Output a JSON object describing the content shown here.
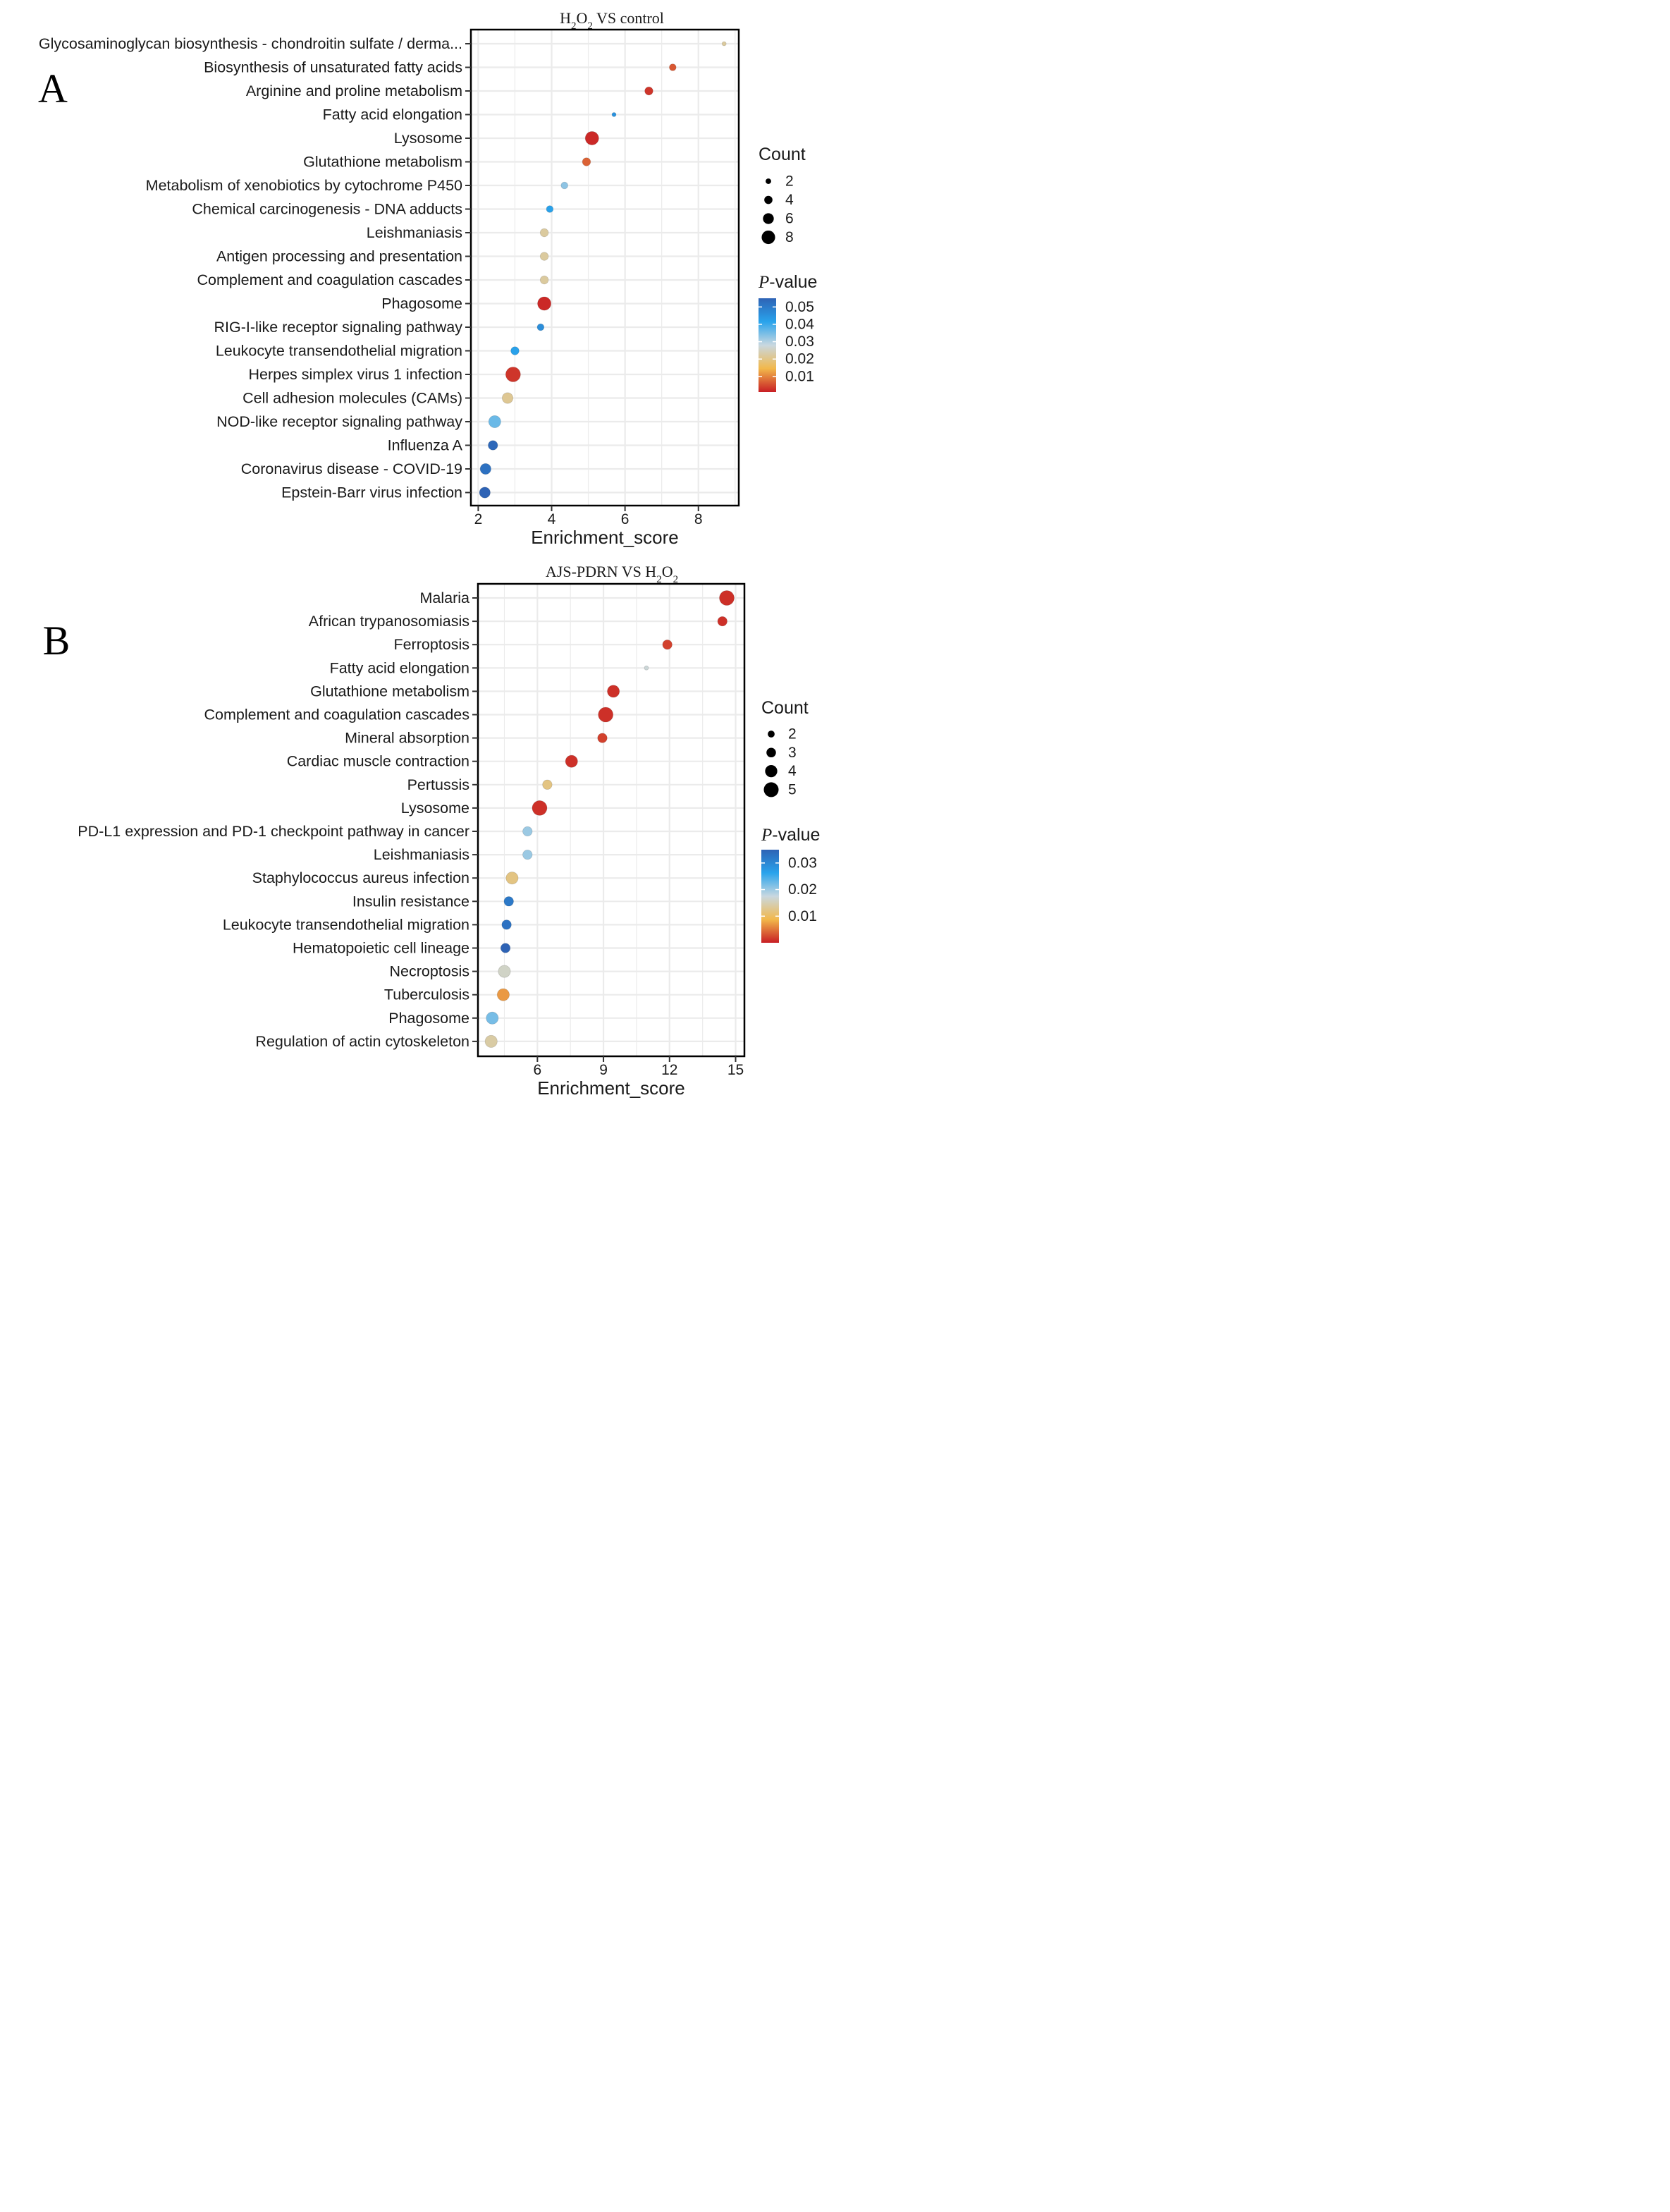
{
  "chart_data": [
    {
      "type": "scatter",
      "panel_label": "A",
      "title": "H2O2 VS control",
      "title_parts": {
        "pre": "H",
        "sub1": "2",
        "mid": "O",
        "sub2": "2",
        "post": " VS control"
      },
      "xlabel": "Enrichment_score",
      "ylabel": "",
      "xlim": [
        1.8,
        9.1
      ],
      "xticks": [
        2,
        4,
        6,
        8
      ],
      "grid": true,
      "legend_position": "right",
      "size_legend": {
        "title": "Count",
        "min": 1,
        "max": 9,
        "entries": [
          2,
          4,
          6,
          8
        ]
      },
      "color_legend": {
        "title_italic": "P",
        "title_rest": "-value",
        "min": 0.001,
        "max": 0.055,
        "ticks": [
          0.05,
          0.04,
          0.03,
          0.02,
          0.01
        ],
        "tick_labels": [
          "0.05",
          "0.04",
          "0.03",
          "0.02",
          "0.01"
        ]
      },
      "points": [
        {
          "term": "Glycosaminoglycan biosynthesis - chondroitin sulfate / derma...",
          "x": 8.7,
          "count": 1,
          "p": 0.022
        },
        {
          "term": "Biosynthesis of unsaturated fatty acids",
          "x": 7.3,
          "count": 3,
          "p": 0.006
        },
        {
          "term": "Arginine and proline metabolism",
          "x": 6.65,
          "count": 4,
          "p": 0.003
        },
        {
          "term": "Fatty acid elongation",
          "x": 5.7,
          "count": 1,
          "p": 0.045
        },
        {
          "term": "Lysosome",
          "x": 5.1,
          "count": 8,
          "p": 0.002
        },
        {
          "term": "Glutathione metabolism",
          "x": 4.95,
          "count": 4,
          "p": 0.007
        },
        {
          "term": "Metabolism of xenobiotics by cytochrome P450",
          "x": 4.35,
          "count": 3,
          "p": 0.033
        },
        {
          "term": "Chemical carcinogenesis - DNA adducts",
          "x": 3.95,
          "count": 3,
          "p": 0.042
        },
        {
          "term": "Leishmaniasis",
          "x": 3.8,
          "count": 4,
          "p": 0.022
        },
        {
          "term": "Antigen processing and presentation",
          "x": 3.8,
          "count": 4,
          "p": 0.022
        },
        {
          "term": "Complement and coagulation cascades",
          "x": 3.8,
          "count": 4,
          "p": 0.022
        },
        {
          "term": "Phagosome",
          "x": 3.8,
          "count": 8,
          "p": 0.002
        },
        {
          "term": "RIG-I-like receptor signaling pathway",
          "x": 3.7,
          "count": 3,
          "p": 0.046
        },
        {
          "term": "Leukocyte transendothelial migration",
          "x": 3.0,
          "count": 4,
          "p": 0.042
        },
        {
          "term": "Herpes simplex virus 1 infection",
          "x": 2.95,
          "count": 9,
          "p": 0.003
        },
        {
          "term": "Cell adhesion molecules (CAMs)",
          "x": 2.8,
          "count": 6,
          "p": 0.021
        },
        {
          "term": "NOD-like receptor signaling pathway",
          "x": 2.45,
          "count": 7,
          "p": 0.036
        },
        {
          "term": "Influenza A",
          "x": 2.4,
          "count": 5,
          "p": 0.054
        },
        {
          "term": "Coronavirus disease - COVID-19",
          "x": 2.2,
          "count": 6,
          "p": 0.052
        },
        {
          "term": "Epstein-Barr virus infection",
          "x": 2.18,
          "count": 6,
          "p": 0.055
        }
      ]
    },
    {
      "type": "scatter",
      "panel_label": "B",
      "title": "AJS-PDRN VS H2O2",
      "title_parts": {
        "pre": "AJS-PDRN VS H",
        "sub1": "2",
        "mid": "O",
        "sub2": "2",
        "post": ""
      },
      "xlabel": "Enrichment_score",
      "ylabel": "",
      "xlim": [
        3.3,
        15.4
      ],
      "xticks": [
        6,
        9,
        12,
        15
      ],
      "grid": true,
      "legend_position": "right",
      "size_legend": {
        "title": "Count",
        "min": 1,
        "max": 5,
        "entries": [
          2,
          3,
          4,
          5
        ]
      },
      "color_legend": {
        "title_italic": "P",
        "title_rest": "-value",
        "min": 0.0,
        "max": 0.035,
        "ticks": [
          0.03,
          0.02,
          0.01
        ],
        "tick_labels": [
          "0.03",
          "0.02",
          "0.01"
        ]
      },
      "points": [
        {
          "term": "Malaria",
          "x": 14.6,
          "count": 5,
          "p": 0.001
        },
        {
          "term": "African trypanosomiasis",
          "x": 14.4,
          "count": 3,
          "p": 0.001
        },
        {
          "term": "Ferroptosis",
          "x": 11.9,
          "count": 3,
          "p": 0.002
        },
        {
          "term": "Fatty acid elongation",
          "x": 10.95,
          "count": 1,
          "p": 0.017
        },
        {
          "term": "Glutathione metabolism",
          "x": 9.45,
          "count": 4,
          "p": 0.001
        },
        {
          "term": "Complement and coagulation cascades",
          "x": 9.1,
          "count": 5,
          "p": 0.001
        },
        {
          "term": "Mineral absorption",
          "x": 8.95,
          "count": 3,
          "p": 0.002
        },
        {
          "term": "Cardiac muscle contraction",
          "x": 7.55,
          "count": 4,
          "p": 0.001
        },
        {
          "term": "Pertussis",
          "x": 6.45,
          "count": 3,
          "p": 0.012
        },
        {
          "term": "Lysosome",
          "x": 6.1,
          "count": 5,
          "p": 0.001
        },
        {
          "term": "PD-L1 expression and PD-1 checkpoint pathway in cancer",
          "x": 5.55,
          "count": 3,
          "p": 0.02
        },
        {
          "term": "Leishmaniasis",
          "x": 5.55,
          "count": 3,
          "p": 0.02
        },
        {
          "term": "Staphylococcus aureus infection",
          "x": 4.85,
          "count": 4,
          "p": 0.012
        },
        {
          "term": "Insulin resistance",
          "x": 4.7,
          "count": 3,
          "p": 0.032
        },
        {
          "term": "Leukocyte transendothelial migration",
          "x": 4.6,
          "count": 3,
          "p": 0.033
        },
        {
          "term": "Hematopoietic cell lineage",
          "x": 4.55,
          "count": 3,
          "p": 0.035
        },
        {
          "term": "Necroptosis",
          "x": 4.5,
          "count": 4,
          "p": 0.016
        },
        {
          "term": "Tuberculosis",
          "x": 4.45,
          "count": 4,
          "p": 0.007
        },
        {
          "term": "Phagosome",
          "x": 3.95,
          "count": 4,
          "p": 0.022
        },
        {
          "term": "Regulation of actin cytoskeleton",
          "x": 3.9,
          "count": 4,
          "p": 0.014
        }
      ]
    }
  ]
}
